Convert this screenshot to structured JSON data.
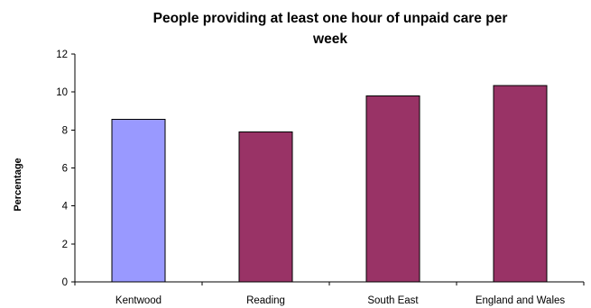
{
  "chart_data": {
    "type": "bar",
    "title_lines": [
      "People providing at least one hour of unpaid care per",
      "week"
    ],
    "xlabel": "",
    "ylabel": "Percentage",
    "ylim": [
      0,
      12
    ],
    "yticks": [
      "0",
      "2",
      "4",
      "6",
      "8",
      "10",
      "12"
    ],
    "grid": false,
    "legend": "none",
    "categories": [
      "Kentwood",
      "Reading",
      "South East",
      "England and Wales"
    ],
    "values": [
      8.55,
      7.9,
      9.8,
      10.35
    ],
    "bar_colors": [
      "#9999ff",
      "#993366",
      "#993366",
      "#993366"
    ],
    "bar_edge_color": "#000000"
  }
}
